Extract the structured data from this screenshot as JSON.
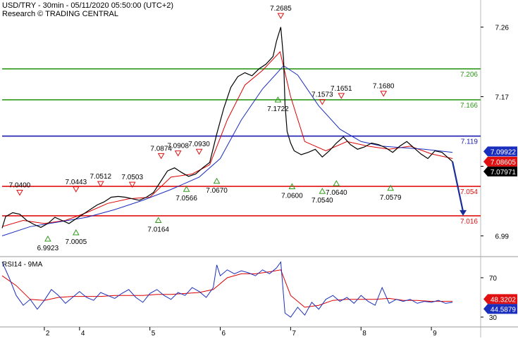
{
  "header": {
    "title": "USD/TRY - 30min - 05/11/2020 05:50:00 (UTC+2)",
    "subtitle": "Research © TRADING CENTRAL"
  },
  "colors": {
    "price_line": "#000000",
    "ma_red": "#dd0000",
    "ma_blue": "#1a2ebd",
    "resistance_green": "#2f9a1a",
    "pivot_blue": "#1a1ab0",
    "support_red": "#e01010",
    "arrow": "#1a2e9a",
    "frame": "#bbbbbb"
  },
  "chart_data": [
    {
      "type": "line",
      "panel": "price",
      "title": "USD/TRY - 30min - 05/11/2020 05:50:00 (UTC+2)",
      "ylim": [
        6.965,
        7.295
      ],
      "y_ticks": [
        6.99,
        7.08,
        7.17,
        7.26
      ],
      "y_tick_labels": [
        "6.99",
        "",
        "7.17",
        "7.26"
      ],
      "x_tick_labels": [
        "2",
        "4",
        "5",
        "6",
        "7",
        "8",
        "9"
      ],
      "x_tick_positions": [
        2.0,
        2.5,
        3.5,
        4.5,
        5.5,
        6.5,
        7.5
      ],
      "xlim": [
        1.4,
        8.2
      ],
      "price": [
        [
          1.4,
          7.0
        ],
        [
          1.45,
          7.015
        ],
        [
          1.55,
          7.02
        ],
        [
          1.65,
          7.018
        ],
        [
          1.75,
          7.01
        ],
        [
          1.85,
          7.005
        ],
        [
          1.95,
          7.001
        ],
        [
          2.05,
          7.006
        ],
        [
          2.15,
          7.014
        ],
        [
          2.25,
          7.01
        ],
        [
          2.35,
          7.006
        ],
        [
          2.45,
          7.012
        ],
        [
          2.55,
          7.018
        ],
        [
          2.65,
          7.024
        ],
        [
          2.75,
          7.03
        ],
        [
          2.85,
          7.034
        ],
        [
          2.95,
          7.04
        ],
        [
          3.05,
          7.041
        ],
        [
          3.15,
          7.04
        ],
        [
          3.25,
          7.038
        ],
        [
          3.35,
          7.036
        ],
        [
          3.45,
          7.04
        ],
        [
          3.55,
          7.046
        ],
        [
          3.65,
          7.06
        ],
        [
          3.75,
          7.074
        ],
        [
          3.85,
          7.078
        ],
        [
          3.95,
          7.072
        ],
        [
          4.05,
          7.067
        ],
        [
          4.15,
          7.07
        ],
        [
          4.25,
          7.078
        ],
        [
          4.35,
          7.085
        ],
        [
          4.45,
          7.122
        ],
        [
          4.55,
          7.155
        ],
        [
          4.65,
          7.182
        ],
        [
          4.75,
          7.196
        ],
        [
          4.85,
          7.201
        ],
        [
          4.95,
          7.197
        ],
        [
          5.05,
          7.206
        ],
        [
          5.15,
          7.212
        ],
        [
          5.25,
          7.222
        ],
        [
          5.3,
          7.242
        ],
        [
          5.36,
          7.26
        ],
        [
          5.4,
          7.218
        ],
        [
          5.42,
          7.16
        ],
        [
          5.45,
          7.125
        ],
        [
          5.5,
          7.11
        ],
        [
          5.55,
          7.1
        ],
        [
          5.65,
          7.095
        ],
        [
          5.75,
          7.098
        ],
        [
          5.85,
          7.102
        ],
        [
          5.95,
          7.092
        ],
        [
          6.05,
          7.1
        ],
        [
          6.15,
          7.11
        ],
        [
          6.25,
          7.118
        ],
        [
          6.35,
          7.108
        ],
        [
          6.45,
          7.102
        ],
        [
          6.55,
          7.105
        ],
        [
          6.65,
          7.11
        ],
        [
          6.75,
          7.108
        ],
        [
          6.85,
          7.104
        ],
        [
          6.95,
          7.098
        ],
        [
          7.05,
          7.106
        ],
        [
          7.15,
          7.112
        ],
        [
          7.25,
          7.104
        ],
        [
          7.35,
          7.096
        ],
        [
          7.45,
          7.09
        ],
        [
          7.55,
          7.1
        ],
        [
          7.65,
          7.098
        ],
        [
          7.75,
          7.09
        ],
        [
          7.8,
          7.086
        ]
      ],
      "series": [
        {
          "name": "",
          "color": "#dd0000",
          "points": [
            [
              1.4,
              7.002
            ],
            [
              1.7,
              7.01
            ],
            [
              2.0,
              7.006
            ],
            [
              2.3,
              7.01
            ],
            [
              2.6,
              7.02
            ],
            [
              2.9,
              7.032
            ],
            [
              3.2,
              7.038
            ],
            [
              3.5,
              7.04
            ],
            [
              3.8,
              7.066
            ],
            [
              4.1,
              7.07
            ],
            [
              4.35,
              7.082
            ],
            [
              4.6,
              7.14
            ],
            [
              4.85,
              7.185
            ],
            [
              5.1,
              7.204
            ],
            [
              5.35,
              7.228
            ],
            [
              5.5,
              7.17
            ],
            [
              5.7,
              7.112
            ],
            [
              6.0,
              7.1
            ],
            [
              6.3,
              7.112
            ],
            [
              6.6,
              7.106
            ],
            [
              6.9,
              7.102
            ],
            [
              7.2,
              7.106
            ],
            [
              7.5,
              7.096
            ],
            [
              7.8,
              7.09
            ]
          ]
        },
        {
          "name": "",
          "color": "#1a2ebd",
          "points": [
            [
              1.4,
              6.99
            ],
            [
              1.8,
              7.002
            ],
            [
              2.2,
              7.008
            ],
            [
              2.6,
              7.014
            ],
            [
              3.0,
              7.024
            ],
            [
              3.4,
              7.036
            ],
            [
              3.8,
              7.05
            ],
            [
              4.2,
              7.066
            ],
            [
              4.5,
              7.09
            ],
            [
              4.8,
              7.14
            ],
            [
              5.1,
              7.18
            ],
            [
              5.4,
              7.21
            ],
            [
              5.6,
              7.198
            ],
            [
              5.9,
              7.158
            ],
            [
              6.2,
              7.128
            ],
            [
              6.5,
              7.112
            ],
            [
              6.8,
              7.106
            ],
            [
              7.1,
              7.104
            ],
            [
              7.4,
              7.102
            ],
            [
              7.8,
              7.098
            ]
          ]
        }
      ],
      "levels": [
        {
          "label": "7.206",
          "value": 7.206,
          "color": "#2f9a1a"
        },
        {
          "label": "7.166",
          "value": 7.166,
          "color": "#2f9a1a"
        },
        {
          "label": "7.119",
          "value": 7.119,
          "color": "#1a1ab0"
        },
        {
          "label": "7.054",
          "value": 7.054,
          "color": "#e01010"
        },
        {
          "label": "7.016",
          "value": 7.016,
          "color": "#e01010"
        }
      ],
      "peaks": [
        {
          "label": "7.2685",
          "x": 5.36,
          "y": 7.2685
        },
        {
          "label": "7.1573",
          "x": 5.95,
          "y": 7.1573
        },
        {
          "label": "7.1651",
          "x": 6.22,
          "y": 7.1651
        },
        {
          "label": "7.1680",
          "x": 6.82,
          "y": 7.168
        },
        {
          "label": "7.0400",
          "x": 1.65,
          "y": 7.04
        },
        {
          "label": "7.0443",
          "x": 2.45,
          "y": 7.0443
        },
        {
          "label": "7.0512",
          "x": 2.8,
          "y": 7.0512
        },
        {
          "label": "7.0503",
          "x": 3.25,
          "y": 7.0503
        },
        {
          "label": "7.0874",
          "x": 3.66,
          "y": 7.0874
        },
        {
          "label": "7.0908",
          "x": 3.9,
          "y": 7.0908
        },
        {
          "label": "7.0930",
          "x": 4.2,
          "y": 7.093
        }
      ],
      "troughs": [
        {
          "label": "6.9923",
          "x": 2.05,
          "y": 6.9923
        },
        {
          "label": "7.0005",
          "x": 2.45,
          "y": 7.0005
        },
        {
          "label": "7.0164",
          "x": 3.62,
          "y": 7.0164
        },
        {
          "label": "7.0566",
          "x": 4.02,
          "y": 7.0566
        },
        {
          "label": "7.0670",
          "x": 4.45,
          "y": 7.067
        },
        {
          "label": "7.1722",
          "x": 5.32,
          "y": 7.1722
        },
        {
          "label": "7.0600",
          "x": 5.52,
          "y": 7.06
        },
        {
          "label": "7.0540",
          "x": 5.95,
          "y": 7.054
        },
        {
          "label": "7.0640",
          "x": 6.15,
          "y": 7.064
        },
        {
          "label": "7.0579",
          "x": 6.92,
          "y": 7.0579
        }
      ],
      "projection": {
        "from": [
          7.8,
          7.086
        ],
        "to": [
          7.95,
          7.016
        ]
      },
      "last_values": [
        {
          "label": "7.09922",
          "value": 7.09922,
          "bg": "#1a2ebd",
          "fg": "#ffffff"
        },
        {
          "label": "7.08605",
          "value": 7.08605,
          "bg": "#e01010",
          "fg": "#ffffff"
        },
        {
          "label": "7.07971",
          "value": 7.07971,
          "bg": "#000000",
          "fg": "#ffffff"
        }
      ]
    },
    {
      "type": "line",
      "panel": "indicator",
      "title": "RSI14 - 9MA",
      "ylim": [
        20,
        90
      ],
      "y_ticks": [
        30,
        70
      ],
      "y_tick_labels": [
        "30",
        "70"
      ],
      "series": [
        {
          "name": "",
          "color": "#1a2ebd",
          "points": [
            [
              1.4,
              86
            ],
            [
              1.5,
              70
            ],
            [
              1.6,
              52
            ],
            [
              1.7,
              42
            ],
            [
              1.8,
              48
            ],
            [
              1.9,
              38
            ],
            [
              2.0,
              47
            ],
            [
              2.1,
              58
            ],
            [
              2.2,
              52
            ],
            [
              2.3,
              44
            ],
            [
              2.4,
              50
            ],
            [
              2.5,
              56
            ],
            [
              2.6,
              50
            ],
            [
              2.7,
              47
            ],
            [
              2.8,
              55
            ],
            [
              2.9,
              52
            ],
            [
              3.0,
              49
            ],
            [
              3.1,
              54
            ],
            [
              3.2,
              58
            ],
            [
              3.3,
              50
            ],
            [
              3.4,
              45
            ],
            [
              3.5,
              54
            ],
            [
              3.6,
              58
            ],
            [
              3.7,
              52
            ],
            [
              3.8,
              48
            ],
            [
              3.9,
              55
            ],
            [
              4.0,
              52
            ],
            [
              4.1,
              60
            ],
            [
              4.2,
              56
            ],
            [
              4.3,
              50
            ],
            [
              4.4,
              60
            ],
            [
              4.45,
              83
            ],
            [
              4.5,
              72
            ],
            [
              4.6,
              78
            ],
            [
              4.7,
              74
            ],
            [
              4.8,
              77
            ],
            [
              4.9,
              75
            ],
            [
              5.0,
              72
            ],
            [
              5.1,
              78
            ],
            [
              5.2,
              74
            ],
            [
              5.3,
              80
            ],
            [
              5.36,
              86
            ],
            [
              5.42,
              34
            ],
            [
              5.5,
              30
            ],
            [
              5.6,
              40
            ],
            [
              5.7,
              32
            ],
            [
              5.8,
              45
            ],
            [
              5.9,
              38
            ],
            [
              6.0,
              48
            ],
            [
              6.1,
              52
            ],
            [
              6.2,
              46
            ],
            [
              6.3,
              50
            ],
            [
              6.4,
              44
            ],
            [
              6.5,
              52
            ],
            [
              6.6,
              46
            ],
            [
              6.7,
              42
            ],
            [
              6.8,
              60
            ],
            [
              6.9,
              44
            ],
            [
              7.0,
              48
            ],
            [
              7.1,
              46
            ],
            [
              7.2,
              48
            ],
            [
              7.3,
              44
            ],
            [
              7.4,
              46
            ],
            [
              7.5,
              45
            ],
            [
              7.6,
              47
            ],
            [
              7.7,
              44
            ],
            [
              7.8,
              45
            ]
          ]
        },
        {
          "name": "",
          "color": "#dd0000",
          "points": [
            [
              1.4,
              72
            ],
            [
              1.6,
              62
            ],
            [
              1.8,
              48
            ],
            [
              2.0,
              47
            ],
            [
              2.2,
              50
            ],
            [
              2.4,
              51
            ],
            [
              2.6,
              51
            ],
            [
              2.8,
              51
            ],
            [
              3.0,
              52
            ],
            [
              3.2,
              52
            ],
            [
              3.4,
              52
            ],
            [
              3.6,
              53
            ],
            [
              3.8,
              53
            ],
            [
              4.0,
              54
            ],
            [
              4.2,
              55
            ],
            [
              4.4,
              58
            ],
            [
              4.6,
              70
            ],
            [
              4.8,
              74
            ],
            [
              5.0,
              74
            ],
            [
              5.2,
              76
            ],
            [
              5.36,
              78
            ],
            [
              5.5,
              52
            ],
            [
              5.7,
              40
            ],
            [
              5.9,
              42
            ],
            [
              6.1,
              47
            ],
            [
              6.3,
              48
            ],
            [
              6.5,
              48
            ],
            [
              6.7,
              48
            ],
            [
              6.9,
              49
            ],
            [
              7.1,
              47
            ],
            [
              7.3,
              47
            ],
            [
              7.5,
              46
            ],
            [
              7.8,
              46
            ]
          ]
        }
      ],
      "last_values": [
        {
          "label": "48.3202",
          "value": 48.3202,
          "bg": "#e01010",
          "fg": "#ffffff"
        },
        {
          "label": "44.5879",
          "value": 44.5879,
          "bg": "#1a2ebd",
          "fg": "#ffffff"
        }
      ]
    }
  ]
}
